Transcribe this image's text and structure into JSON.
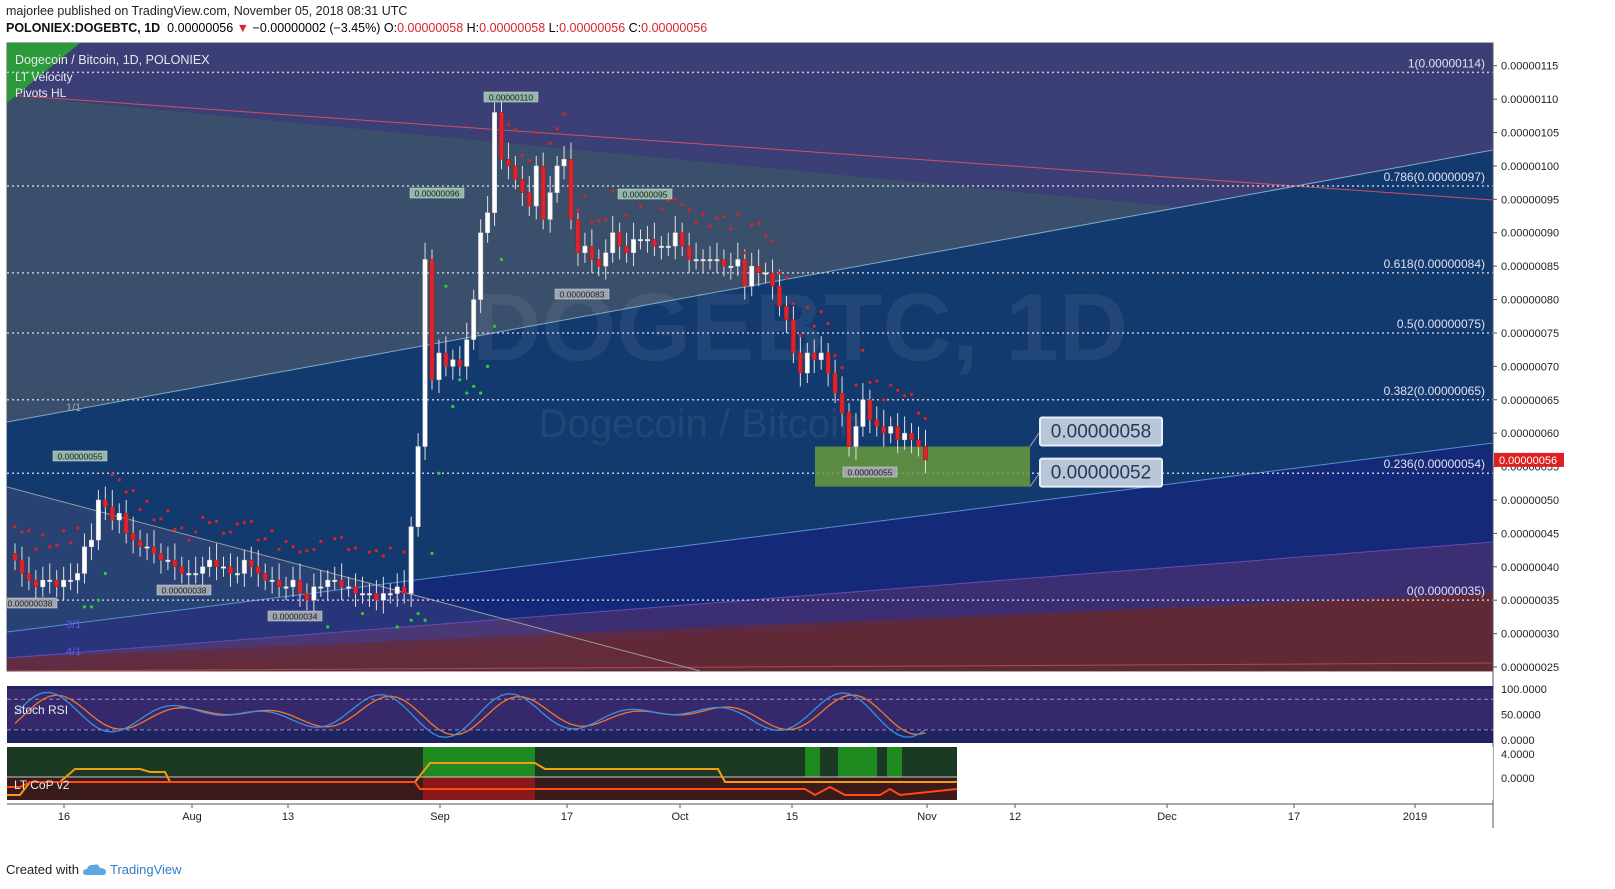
{
  "header": {
    "author": "majorlee",
    "published_text": "published on TradingView.com, November 05, 2018 08:31 UTC",
    "symbol": "POLONIEX:DOGEBTC, 1D",
    "last": "0.00000056",
    "arrow": "▼",
    "change": "−0.00000002 (−3.45%)",
    "o_label": "O:",
    "o": "0.00000058",
    "h_label": "H:",
    "h": "0.00000058",
    "l_label": "L:",
    "l": "0.00000056",
    "c_label": "C:",
    "c": "0.00000056"
  },
  "legend": {
    "title": "Dogecoin / Bitcoin, 1D, POLONIEX",
    "ind1": "LT Velocity",
    "ind2": "Pivots HL"
  },
  "watermark": {
    "line1": "DOGEBTC, 1D",
    "line2": "Dogecoin / Bitcoin"
  },
  "footer": {
    "created": "Created with",
    "brand": "TradingView"
  },
  "colors": {
    "up": "#ffffff",
    "down": "#d9252b",
    "bg_dark": "#1e2460",
    "fib_line": "#c8c8d8",
    "zone": "#6a9a3c",
    "orange": "#f39c12",
    "green": "#2bd02b"
  },
  "chart_data": {
    "type": "candlestick",
    "y_scale": "price",
    "ylim": [
      2.4e-07,
      1.19e-06
    ],
    "x_ticks": [
      "16",
      "Aug",
      "13",
      "Sep",
      "17",
      "Oct",
      "15",
      "Nov",
      "12",
      "Dec",
      "17",
      "2019"
    ],
    "y_ticks": [
      "0.00000115",
      "0.00000110",
      "0.00000105",
      "0.00000100",
      "0.00000095",
      "0.00000090",
      "0.00000085",
      "0.00000080",
      "0.00000075",
      "0.00000070",
      "0.00000065",
      "0.00000060",
      "0.00000055",
      "0.00000050",
      "0.00000045",
      "0.00000040",
      "0.00000035",
      "0.00000030",
      "0.00000025"
    ],
    "last_price_label": "0.00000056",
    "fib_levels": [
      {
        "label": "1(0.00000114)",
        "value": 1.14
      },
      {
        "label": "0.786(0.00000097)",
        "value": 0.97
      },
      {
        "label": "0.618(0.00000084)",
        "value": 0.84
      },
      {
        "label": "0.5(0.00000075)",
        "value": 0.75
      },
      {
        "label": "0.382(0.00000065)",
        "value": 0.65
      },
      {
        "label": "0.236(0.00000054)",
        "value": 0.54
      },
      {
        "label": "0(0.00000035)",
        "value": 0.35
      }
    ],
    "gann_labels": [
      "1/1",
      "3/1",
      "4/1"
    ],
    "pivots": [
      {
        "label": "0.00000110",
        "kind": "high"
      },
      {
        "label": "0.00000096",
        "kind": "high"
      },
      {
        "label": "0.00000095",
        "kind": "high"
      },
      {
        "label": "0.00000055",
        "kind": "high"
      },
      {
        "label": "0.00000083",
        "kind": "low"
      },
      {
        "label": "0.00000055",
        "kind": "low"
      },
      {
        "label": "0.00000038",
        "kind": "low"
      },
      {
        "label": "0.00000038",
        "kind": "low"
      },
      {
        "label": "0.00000034",
        "kind": "low"
      }
    ],
    "zone_labels": [
      "0.00000058",
      "0.00000052"
    ],
    "closes": [
      0.41,
      0.39,
      0.38,
      0.37,
      0.38,
      0.38,
      0.37,
      0.38,
      0.38,
      0.39,
      0.43,
      0.44,
      0.5,
      0.49,
      0.47,
      0.48,
      0.45,
      0.44,
      0.43,
      0.43,
      0.42,
      0.41,
      0.41,
      0.4,
      0.39,
      0.39,
      0.39,
      0.4,
      0.41,
      0.4,
      0.4,
      0.39,
      0.39,
      0.41,
      0.4,
      0.39,
      0.38,
      0.38,
      0.37,
      0.37,
      0.38,
      0.36,
      0.35,
      0.37,
      0.37,
      0.38,
      0.38,
      0.37,
      0.37,
      0.36,
      0.36,
      0.36,
      0.35,
      0.36,
      0.36,
      0.37,
      0.36,
      0.46,
      0.58,
      0.86,
      0.68,
      0.72,
      0.7,
      0.71,
      0.7,
      0.74,
      0.8,
      0.9,
      0.93,
      1.08,
      1.01,
      1.0,
      0.98,
      0.96,
      0.94,
      1.0,
      0.92,
      0.96,
      1.0,
      1.01,
      0.92,
      0.87,
      0.88,
      0.86,
      0.85,
      0.87,
      0.9,
      0.88,
      0.87,
      0.89,
      0.89,
      0.89,
      0.88,
      0.88,
      0.88,
      0.9,
      0.88,
      0.86,
      0.86,
      0.86,
      0.86,
      0.86,
      0.85,
      0.85,
      0.86,
      0.82,
      0.85,
      0.84,
      0.84,
      0.82,
      0.79,
      0.77,
      0.72,
      0.69,
      0.72,
      0.71,
      0.72,
      0.69,
      0.66,
      0.63,
      0.58,
      0.61,
      0.65,
      0.62,
      0.61,
      0.6,
      0.61,
      0.59,
      0.6,
      0.59,
      0.58,
      0.56
    ],
    "stoch_rsi": {
      "name": "Stoch RSI",
      "ylim": [
        0,
        100
      ],
      "y_ticks": [
        "100.0000",
        "50.0000",
        "0.0000"
      ],
      "bands": [
        80,
        20
      ]
    },
    "lt_cop": {
      "name": "LT CoP v2",
      "y_ticks": [
        "4.0000",
        "0.0000"
      ]
    }
  }
}
